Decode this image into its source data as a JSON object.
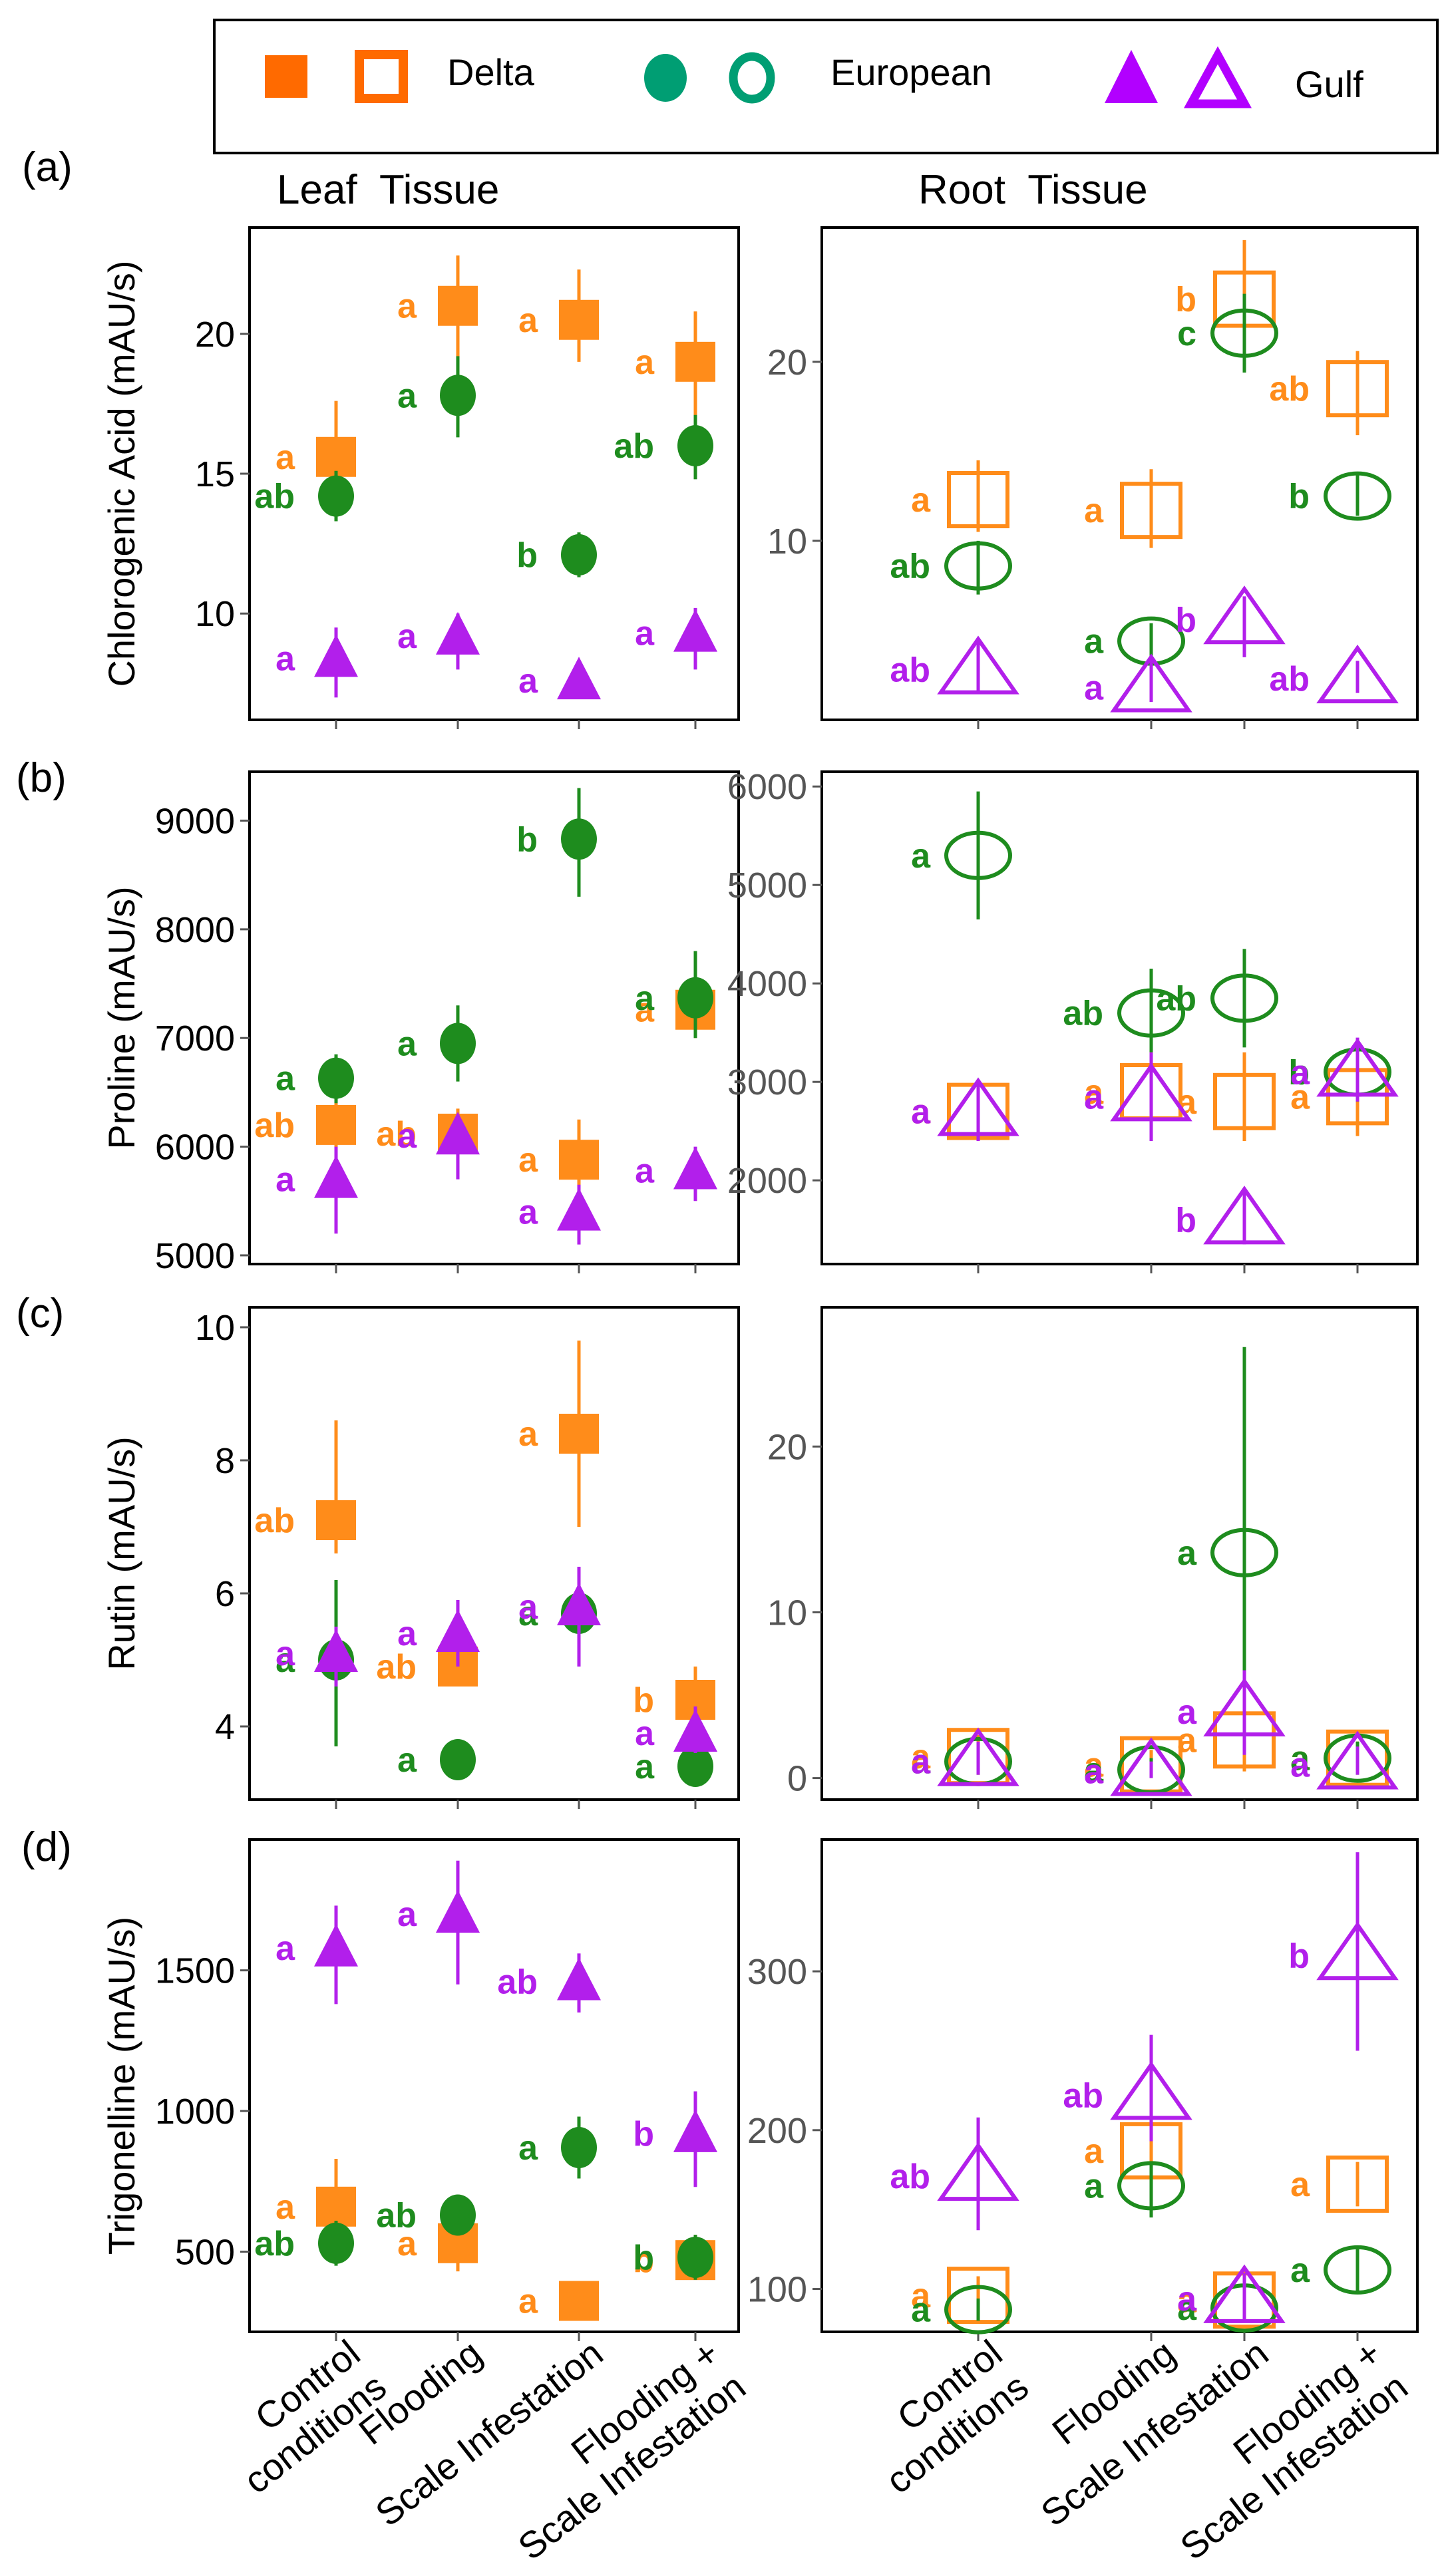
{
  "legend": {
    "items": [
      {
        "name": "Delta",
        "color": "#FF6A00",
        "shape": "square"
      },
      {
        "name": "European",
        "color": "#009E73",
        "shape": "circle"
      },
      {
        "name": "Gulf",
        "color": "#B200FF",
        "shape": "triangle"
      }
    ]
  },
  "columns": {
    "leaf": "Leaf  Tissue",
    "root": "Root  Tissue"
  },
  "x_tick_labels": [
    [
      "Control",
      "conditions"
    ],
    [
      "Flooding"
    ],
    [
      "Scale Infestation"
    ],
    [
      "Flooding +",
      "Scale Infestation"
    ]
  ],
  "chart_data": [
    {
      "type": "scatter",
      "panel": "(a)",
      "tissue": "Leaf",
      "ylabel": "Chlorogenic Acid (mAU/s)",
      "categories": [
        "Control conditions",
        "Flooding",
        "Scale Infestation",
        "Flooding + Scale Infestation"
      ],
      "ylim": [
        6.2,
        23.8
      ],
      "yticks": [
        10,
        15,
        20
      ],
      "series": [
        {
          "name": "Delta",
          "color": "#FF8C1A",
          "values": [
            15.6,
            21.0,
            20.5,
            19.0
          ],
          "err_lo": [
            14.4,
            19.0,
            19.0,
            17.0
          ],
          "err_hi": [
            17.6,
            22.8,
            22.3,
            20.8
          ],
          "letters": [
            "a",
            "a",
            "a",
            "a"
          ]
        },
        {
          "name": "European",
          "color": "#1E8C1E",
          "values": [
            14.2,
            17.8,
            12.1,
            16.0
          ],
          "err_lo": [
            13.3,
            16.3,
            11.3,
            14.8
          ],
          "err_hi": [
            15.1,
            19.2,
            12.9,
            17.1
          ],
          "letters": [
            "ab",
            "a",
            "b",
            "ab"
          ]
        },
        {
          "name": "Gulf",
          "color": "#B21FEB",
          "values": [
            8.4,
            9.2,
            7.6,
            9.3
          ],
          "err_lo": [
            7.0,
            8.0,
            7.0,
            8.0
          ],
          "err_hi": [
            9.5,
            10.0,
            8.2,
            10.2
          ],
          "letters": [
            "a",
            "a",
            "a",
            "a"
          ]
        }
      ]
    },
    {
      "type": "scatter",
      "panel": "(a)",
      "tissue": "Root",
      "ylabel": "",
      "categories": [
        "Control conditions",
        "Flooding",
        "Scale Infestation",
        "Flooding + Scale Infestation"
      ],
      "ylim": [
        0,
        27.5
      ],
      "yticks": [
        10,
        20
      ],
      "series": [
        {
          "name": "Delta",
          "color": "#FF8C1A",
          "values": [
            12.3,
            11.7,
            23.5,
            18.5
          ],
          "err_lo": [
            10.5,
            9.6,
            20.5,
            15.9
          ],
          "err_hi": [
            14.5,
            14.0,
            26.8,
            20.6
          ],
          "letters": [
            "a",
            "a",
            "b",
            "ab"
          ]
        },
        {
          "name": "European",
          "color": "#1E8C1E",
          "values": [
            8.6,
            4.4,
            21.6,
            12.5
          ],
          "err_lo": [
            7.0,
            3.3,
            19.4,
            11.4
          ],
          "err_hi": [
            10.0,
            5.4,
            23.8,
            13.7
          ],
          "letters": [
            "ab",
            "a",
            "c",
            "b"
          ]
        },
        {
          "name": "Gulf",
          "color": "#B21FEB",
          "values": [
            2.8,
            1.8,
            5.6,
            2.3
          ],
          "err_lo": [
            1.6,
            1.0,
            3.5,
            1.5
          ],
          "err_hi": [
            4.5,
            3.3,
            6.9,
            3.3
          ],
          "letters": [
            "ab",
            "a",
            "b",
            "ab"
          ]
        }
      ]
    },
    {
      "type": "scatter",
      "panel": "(b)",
      "tissue": "Leaf",
      "ylabel": "Proline (mAU/s)",
      "categories": [
        "Control conditions",
        "Flooding",
        "Scale Infestation",
        "Flooding + Scale Infestation"
      ],
      "ylim": [
        4920,
        9450
      ],
      "yticks": [
        5000,
        6000,
        7000,
        8000,
        9000
      ],
      "series": [
        {
          "name": "Delta",
          "color": "#FF8C1A",
          "values": [
            6200,
            6120,
            5880,
            7260
          ],
          "err_lo": [
            5950,
            5880,
            5550,
            7000
          ],
          "err_hi": [
            6450,
            6350,
            6250,
            7500
          ],
          "letters": [
            "ab",
            "ab",
            "a",
            "a"
          ]
        },
        {
          "name": "European",
          "color": "#1E8C1E",
          "values": [
            6630,
            6950,
            8830,
            7370
          ],
          "err_lo": [
            6400,
            6600,
            8300,
            7000
          ],
          "err_hi": [
            6850,
            7300,
            9300,
            7800
          ],
          "letters": [
            "a",
            "a",
            "b",
            "a"
          ]
        },
        {
          "name": "Gulf",
          "color": "#B21FEB",
          "values": [
            5700,
            6100,
            5400,
            5780
          ],
          "err_lo": [
            5200,
            5700,
            5100,
            5500
          ],
          "err_hi": [
            6000,
            6300,
            5650,
            6000
          ],
          "letters": [
            "a",
            "a",
            "a",
            "a"
          ]
        }
      ]
    },
    {
      "type": "scatter",
      "panel": "(b)",
      "tissue": "Root",
      "ylabel": "",
      "categories": [
        "Control conditions",
        "Flooding",
        "Scale Infestation",
        "Flooding + Scale Infestation"
      ],
      "ylim": [
        1150,
        6150
      ],
      "yticks": [
        2000,
        3000,
        4000,
        5000,
        6000
      ],
      "series": [
        {
          "name": "Delta",
          "color": "#FF8C1A",
          "values": [
            2700,
            2900,
            2800,
            2850
          ],
          "err_lo": [
            2400,
            2500,
            2400,
            2450
          ],
          "err_hi": [
            3000,
            3350,
            3300,
            3300
          ],
          "letters": [
            "a",
            "a",
            "a",
            "a"
          ]
        },
        {
          "name": "European",
          "color": "#1E8C1E",
          "values": [
            5300,
            3700,
            3850,
            3100
          ],
          "err_lo": [
            4650,
            3300,
            3350,
            2800
          ],
          "err_hi": [
            5950,
            4150,
            4350,
            3400
          ],
          "letters": [
            "a",
            "ab",
            "ab",
            "b"
          ]
        },
        {
          "name": "Gulf",
          "color": "#B21FEB",
          "values": [
            2700,
            2850,
            1600,
            3100
          ],
          "err_lo": [
            2400,
            2400,
            1350,
            2800
          ],
          "err_hi": [
            3000,
            3300,
            1900,
            3450
          ],
          "letters": [
            "a",
            "a",
            "b",
            "a"
          ]
        }
      ]
    },
    {
      "type": "scatter",
      "panel": "(c)",
      "tissue": "Leaf",
      "ylabel": "Rutin (mAU/s)",
      "categories": [
        "Control conditions",
        "Flooding",
        "Scale Infestation",
        "Flooding + Scale Infestation"
      ],
      "ylim": [
        2.9,
        10.3
      ],
      "yticks": [
        4,
        6,
        8,
        10
      ],
      "series": [
        {
          "name": "Delta",
          "color": "#FF8C1A",
          "values": [
            7.1,
            4.9,
            8.4,
            4.4
          ],
          "err_lo": [
            6.6,
            4.6,
            7.0,
            4.0
          ],
          "err_hi": [
            8.6,
            5.1,
            9.8,
            4.9
          ],
          "letters": [
            "ab",
            "ab",
            "a",
            "b"
          ]
        },
        {
          "name": "European",
          "color": "#1E8C1E",
          "values": [
            5.0,
            3.5,
            5.7,
            3.4
          ],
          "err_lo": [
            3.7,
            3.3,
            5.2,
            3.2
          ],
          "err_hi": [
            6.2,
            3.7,
            6.0,
            3.6
          ],
          "letters": [
            "a",
            "a",
            "a",
            "a"
          ]
        },
        {
          "name": "Gulf",
          "color": "#B21FEB",
          "values": [
            5.1,
            5.4,
            5.8,
            3.9
          ],
          "err_lo": [
            4.6,
            4.9,
            4.9,
            3.6
          ],
          "err_hi": [
            5.5,
            5.9,
            6.4,
            4.3
          ],
          "letters": [
            "a",
            "a",
            "a",
            "a"
          ]
        }
      ]
    },
    {
      "type": "scatter",
      "panel": "(c)",
      "tissue": "Root",
      "ylabel": "",
      "categories": [
        "Control conditions",
        "Flooding",
        "Scale Infestation",
        "Flooding + Scale Infestation"
      ],
      "ylim": [
        -1.3,
        28.4
      ],
      "yticks": [
        0,
        10,
        20
      ],
      "series": [
        {
          "name": "Delta",
          "color": "#FF8C1A",
          "values": [
            1.3,
            0.8,
            2.3,
            1.2
          ],
          "err_lo": [
            0.2,
            0.1,
            0.4,
            0.3
          ],
          "err_hi": [
            2.6,
            1.7,
            4.3,
            2.2
          ],
          "letters": [
            "a",
            "a",
            "a",
            "a"
          ]
        },
        {
          "name": "European",
          "color": "#1E8C1E",
          "values": [
            1.0,
            0.5,
            13.6,
            1.2
          ],
          "err_lo": [
            0.2,
            0.0,
            3.0,
            0.2
          ],
          "err_hi": [
            2.0,
            1.2,
            26.0,
            2.2
          ],
          "letters": [
            "a",
            "a",
            "a",
            "a"
          ]
        },
        {
          "name": "Gulf",
          "color": "#B21FEB",
          "values": [
            1.0,
            0.4,
            4.0,
            0.8
          ],
          "err_lo": [
            0.2,
            0.0,
            1.4,
            0.2
          ],
          "err_hi": [
            2.2,
            1.0,
            6.5,
            1.9
          ],
          "letters": [
            "a",
            "a",
            "a",
            "a"
          ]
        }
      ]
    },
    {
      "type": "scatter",
      "panel": "(d)",
      "tissue": "Leaf",
      "ylabel": "Trigonelline (mAU/s)",
      "categories": [
        "Control conditions",
        "Flooding",
        "Scale Infestation",
        "Flooding + Scale Infestation"
      ],
      "ylim": [
        215,
        1965
      ],
      "yticks": [
        500,
        1000,
        1500
      ],
      "series": [
        {
          "name": "Delta",
          "color": "#FF8C1A",
          "values": [
            660,
            530,
            325,
            470
          ],
          "err_lo": [
            550,
            430,
            290,
            400
          ],
          "err_hi": [
            830,
            620,
            360,
            560
          ],
          "letters": [
            "a",
            "a",
            "a",
            "b"
          ]
        },
        {
          "name": "European",
          "color": "#1E8C1E",
          "values": [
            530,
            630,
            870,
            480
          ],
          "err_lo": [
            450,
            560,
            760,
            400
          ],
          "err_hi": [
            610,
            700,
            980,
            560
          ],
          "letters": [
            "ab",
            "ab",
            "a",
            "b"
          ]
        },
        {
          "name": "Gulf",
          "color": "#B21FEB",
          "values": [
            1580,
            1700,
            1460,
            920
          ],
          "err_lo": [
            1380,
            1450,
            1350,
            730
          ],
          "err_hi": [
            1730,
            1890,
            1560,
            1070
          ],
          "letters": [
            "a",
            "a",
            "ab",
            "b"
          ]
        }
      ]
    },
    {
      "type": "scatter",
      "panel": "(d)",
      "tissue": "Root",
      "ylabel": "",
      "categories": [
        "Control conditions",
        "Flooding",
        "Scale Infestation",
        "Flooding + Scale Infestation"
      ],
      "ylim": [
        73,
        383
      ],
      "yticks": [
        100,
        200,
        300
      ],
      "series": [
        {
          "name": "Delta",
          "color": "#FF8C1A",
          "values": [
            96,
            187,
            93,
            166
          ],
          "err_lo": [
            84,
            170,
            82,
            152
          ],
          "err_hi": [
            108,
            203,
            105,
            180
          ],
          "letters": [
            "a",
            "a",
            "a",
            "a"
          ]
        },
        {
          "name": "European",
          "color": "#1E8C1E",
          "values": [
            87,
            165,
            88,
            112
          ],
          "err_lo": [
            80,
            145,
            80,
            98
          ],
          "err_hi": [
            94,
            180,
            96,
            126
          ],
          "letters": [
            "a",
            "a",
            "a",
            "a"
          ]
        },
        {
          "name": "Gulf",
          "color": "#B21FEB",
          "values": [
            171,
            222,
            94,
            310
          ],
          "err_lo": [
            137,
            193,
            80,
            250
          ],
          "err_hi": [
            208,
            260,
            110,
            375
          ],
          "letters": [
            "ab",
            "ab",
            "a",
            "b"
          ]
        }
      ]
    }
  ]
}
